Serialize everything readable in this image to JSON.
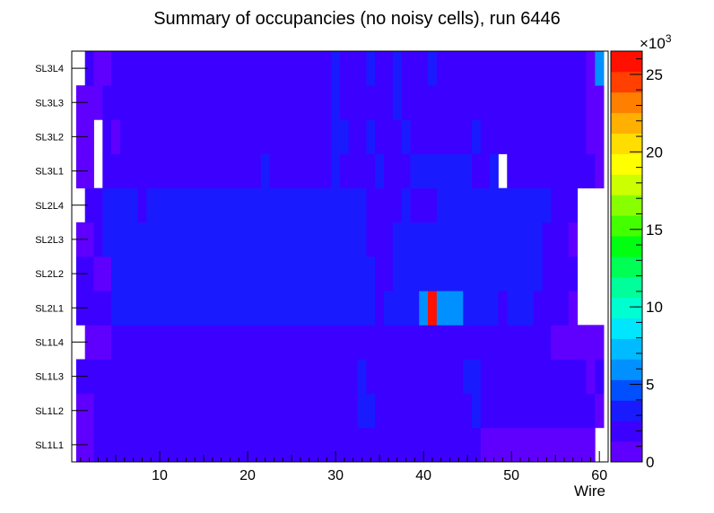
{
  "chart_data": {
    "type": "heatmap",
    "title": "Summary of occupancies (no noisy cells), run 6446",
    "xlabel": "Wire",
    "ylabel": "",
    "xlim": [
      0,
      61
    ],
    "x_ticks": [
      10,
      20,
      30,
      40,
      50,
      60
    ],
    "y_categories": [
      "SL1L1",
      "SL1L2",
      "SL1L3",
      "SL1L4",
      "SL2L1",
      "SL2L2",
      "SL2L3",
      "SL2L4",
      "SL3L1",
      "SL3L2",
      "SL3L3",
      "SL3L4"
    ],
    "z_multiplier": "×10",
    "z_exponent": "3",
    "z_ticks": [
      0,
      5,
      10,
      15,
      20,
      25
    ],
    "zlim": [
      0,
      26.5
    ],
    "palette": [
      "#5f00ff",
      "#3c00ff",
      "#1a1aff",
      "#0050ff",
      "#0090ff",
      "#00bbff",
      "#00e6ff",
      "#00ffd0",
      "#00ff9a",
      "#00ff55",
      "#00ff10",
      "#44ff00",
      "#88ff00",
      "#ccff00",
      "#ffff00",
      "#ffdd00",
      "#ffb000",
      "#ff8000",
      "#ff4000",
      "#ff1000"
    ],
    "rows": [
      {
        "layer": "SL1L1",
        "cells": [
          {
            "from": 1,
            "to": 2,
            "value": 1.0
          },
          {
            "from": 3,
            "to": 46,
            "value": 2.2
          },
          {
            "from": 47,
            "to": 59,
            "value": 1.2
          },
          {
            "from": 60,
            "to": 60,
            "value": 0
          }
        ]
      },
      {
        "layer": "SL1L2",
        "cells": [
          {
            "from": 1,
            "to": 2,
            "value": 1.0
          },
          {
            "from": 3,
            "to": 32,
            "value": 2.2
          },
          {
            "from": 33,
            "to": 34,
            "value": 3.2
          },
          {
            "from": 35,
            "to": 45,
            "value": 2.2
          },
          {
            "from": 46,
            "to": 46,
            "value": 3.2
          },
          {
            "from": 47,
            "to": 59,
            "value": 2.2
          },
          {
            "from": 60,
            "to": 60,
            "value": 1.0
          }
        ]
      },
      {
        "layer": "SL1L3",
        "cells": [
          {
            "from": 1,
            "to": 32,
            "value": 2.2
          },
          {
            "from": 33,
            "to": 33,
            "value": 3.2
          },
          {
            "from": 34,
            "to": 44,
            "value": 2.2
          },
          {
            "from": 45,
            "to": 46,
            "value": 3.2
          },
          {
            "from": 47,
            "to": 58,
            "value": 2.2
          },
          {
            "from": 59,
            "to": 59,
            "value": 1.0
          },
          {
            "from": 60,
            "to": 60,
            "value": 2.2
          }
        ]
      },
      {
        "layer": "SL1L4",
        "cells": [
          {
            "from": 1,
            "to": 1,
            "value": 0
          },
          {
            "from": 2,
            "to": 4,
            "value": 1.0
          },
          {
            "from": 5,
            "to": 54,
            "value": 2.2
          },
          {
            "from": 55,
            "to": 60,
            "value": 1.0
          }
        ]
      },
      {
        "layer": "SL2L1",
        "cells": [
          {
            "from": 1,
            "to": 4,
            "value": 2.2
          },
          {
            "from": 5,
            "to": 34,
            "value": 3.2
          },
          {
            "from": 35,
            "to": 35,
            "value": 2.2
          },
          {
            "from": 36,
            "to": 39,
            "value": 3.2
          },
          {
            "from": 40,
            "to": 40,
            "value": 5.5
          },
          {
            "from": 41,
            "to": 41,
            "value": 26.0
          },
          {
            "from": 42,
            "to": 44,
            "value": 5.5
          },
          {
            "from": 45,
            "to": 48,
            "value": 3.2
          },
          {
            "from": 49,
            "to": 49,
            "value": 2.2
          },
          {
            "from": 50,
            "to": 52,
            "value": 3.2
          },
          {
            "from": 53,
            "to": 56,
            "value": 2.2
          },
          {
            "from": 57,
            "to": 57,
            "value": 1.0
          },
          {
            "from": 58,
            "to": 60,
            "value": 0
          }
        ]
      },
      {
        "layer": "SL2L2",
        "cells": [
          {
            "from": 1,
            "to": 2,
            "value": 2.2
          },
          {
            "from": 3,
            "to": 4,
            "value": 1.0
          },
          {
            "from": 5,
            "to": 34,
            "value": 3.2
          },
          {
            "from": 35,
            "to": 36,
            "value": 2.2
          },
          {
            "from": 37,
            "to": 53,
            "value": 3.2
          },
          {
            "from": 54,
            "to": 57,
            "value": 2.2
          },
          {
            "from": 58,
            "to": 60,
            "value": 0
          }
        ]
      },
      {
        "layer": "SL2L3",
        "cells": [
          {
            "from": 1,
            "to": 2,
            "value": 1.0
          },
          {
            "from": 3,
            "to": 3,
            "value": 2.2
          },
          {
            "from": 4,
            "to": 33,
            "value": 3.2
          },
          {
            "from": 34,
            "to": 36,
            "value": 2.2
          },
          {
            "from": 37,
            "to": 53,
            "value": 3.2
          },
          {
            "from": 54,
            "to": 56,
            "value": 2.2
          },
          {
            "from": 57,
            "to": 57,
            "value": 1.0
          },
          {
            "from": 58,
            "to": 60,
            "value": 0
          }
        ]
      },
      {
        "layer": "SL2L4",
        "cells": [
          {
            "from": 1,
            "to": 1,
            "value": 0
          },
          {
            "from": 2,
            "to": 3,
            "value": 2.2
          },
          {
            "from": 4,
            "to": 7,
            "value": 3.2
          },
          {
            "from": 8,
            "to": 8,
            "value": 2.2
          },
          {
            "from": 9,
            "to": 33,
            "value": 3.2
          },
          {
            "from": 34,
            "to": 37,
            "value": 2.2
          },
          {
            "from": 38,
            "to": 38,
            "value": 3.2
          },
          {
            "from": 39,
            "to": 41,
            "value": 2.2
          },
          {
            "from": 42,
            "to": 54,
            "value": 3.2
          },
          {
            "from": 55,
            "to": 57,
            "value": 2.2
          },
          {
            "from": 58,
            "to": 60,
            "value": 0
          }
        ]
      },
      {
        "layer": "SL3L1",
        "cells": [
          {
            "from": 1,
            "to": 2,
            "value": 1.0
          },
          {
            "from": 3,
            "to": 3,
            "value": 0
          },
          {
            "from": 4,
            "to": 21,
            "value": 2.2
          },
          {
            "from": 22,
            "to": 22,
            "value": 3.2
          },
          {
            "from": 23,
            "to": 29,
            "value": 2.2
          },
          {
            "from": 30,
            "to": 30,
            "value": 3.2
          },
          {
            "from": 31,
            "to": 34,
            "value": 2.2
          },
          {
            "from": 35,
            "to": 35,
            "value": 3.2
          },
          {
            "from": 36,
            "to": 38,
            "value": 2.2
          },
          {
            "from": 39,
            "to": 45,
            "value": 3.2
          },
          {
            "from": 46,
            "to": 47,
            "value": 2.2
          },
          {
            "from": 48,
            "to": 48,
            "value": 3.2
          },
          {
            "from": 49,
            "to": 49,
            "value": 0
          },
          {
            "from": 50,
            "to": 59,
            "value": 2.2
          },
          {
            "from": 60,
            "to": 60,
            "value": 1.0
          }
        ]
      },
      {
        "layer": "SL3L2",
        "cells": [
          {
            "from": 1,
            "to": 2,
            "value": 1.0
          },
          {
            "from": 3,
            "to": 3,
            "value": 0
          },
          {
            "from": 4,
            "to": 4,
            "value": 2.2
          },
          {
            "from": 5,
            "to": 5,
            "value": 1.0
          },
          {
            "from": 6,
            "to": 29,
            "value": 2.2
          },
          {
            "from": 30,
            "to": 31,
            "value": 3.2
          },
          {
            "from": 32,
            "to": 33,
            "value": 2.2
          },
          {
            "from": 34,
            "to": 34,
            "value": 3.2
          },
          {
            "from": 35,
            "to": 37,
            "value": 2.2
          },
          {
            "from": 38,
            "to": 38,
            "value": 3.2
          },
          {
            "from": 39,
            "to": 45,
            "value": 2.2
          },
          {
            "from": 46,
            "to": 46,
            "value": 3.2
          },
          {
            "from": 47,
            "to": 58,
            "value": 2.2
          },
          {
            "from": 59,
            "to": 60,
            "value": 1.0
          }
        ]
      },
      {
        "layer": "SL3L3",
        "cells": [
          {
            "from": 1,
            "to": 3,
            "value": 1.0
          },
          {
            "from": 4,
            "to": 29,
            "value": 2.2
          },
          {
            "from": 30,
            "to": 30,
            "value": 3.2
          },
          {
            "from": 31,
            "to": 36,
            "value": 2.2
          },
          {
            "from": 37,
            "to": 37,
            "value": 3.2
          },
          {
            "from": 38,
            "to": 58,
            "value": 2.2
          },
          {
            "from": 59,
            "to": 60,
            "value": 1.0
          }
        ]
      },
      {
        "layer": "SL3L4",
        "cells": [
          {
            "from": 1,
            "to": 1,
            "value": 0
          },
          {
            "from": 2,
            "to": 2,
            "value": 2.2
          },
          {
            "from": 3,
            "to": 4,
            "value": 1.0
          },
          {
            "from": 5,
            "to": 29,
            "value": 2.2
          },
          {
            "from": 30,
            "to": 30,
            "value": 3.2
          },
          {
            "from": 31,
            "to": 33,
            "value": 2.2
          },
          {
            "from": 34,
            "to": 34,
            "value": 3.2
          },
          {
            "from": 35,
            "to": 36,
            "value": 2.2
          },
          {
            "from": 37,
            "to": 37,
            "value": 3.2
          },
          {
            "from": 38,
            "to": 40,
            "value": 2.2
          },
          {
            "from": 41,
            "to": 41,
            "value": 3.2
          },
          {
            "from": 42,
            "to": 58,
            "value": 2.2
          },
          {
            "from": 59,
            "to": 59,
            "value": 1.0
          },
          {
            "from": 60,
            "to": 60,
            "value": 5.5
          }
        ]
      }
    ]
  }
}
